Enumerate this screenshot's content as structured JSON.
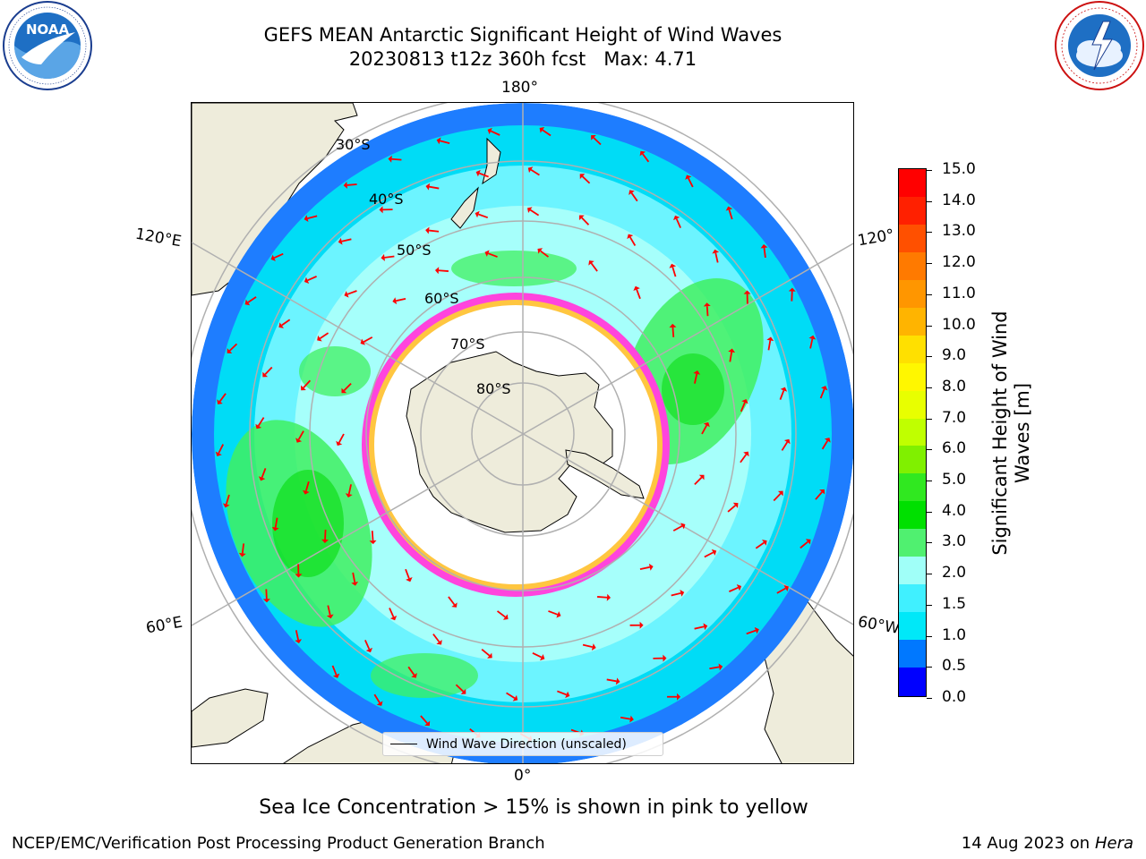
{
  "title": {
    "line1": "GEFS MEAN Antarctic Significant Height of Wind Waves",
    "line2": "20230813 t12z 360h fcst   Max: 4.71"
  },
  "logos": {
    "left": {
      "name": "noaa-logo",
      "text": "NOAA",
      "ring_text": "NATIONAL OCEANIC AND ATMOSPHERIC ADMINISTRATION · U.S. DEPARTMENT OF COMMERCE"
    },
    "right": {
      "name": "nws-logo",
      "ring_text": "NATIONAL WEATHER SERVICE"
    }
  },
  "map": {
    "projection": "south-polar-stereographic",
    "longitude_labels": {
      "top": "180°",
      "bottom": "0°",
      "upper_left": "120°E",
      "lower_left": "60°E",
      "upper_right": "120°",
      "lower_right": "60°W"
    },
    "latitude_labels": [
      "30°S",
      "40°S",
      "50°S",
      "60°S",
      "70°S",
      "80°S"
    ],
    "legend": {
      "label": "Wind Wave Direction (unscaled)"
    },
    "colors": {
      "land": "#eeecdb",
      "outside": "#ffffff",
      "grid": "#b0b0b0",
      "arrow": "#ff0000",
      "sea_ice": "#ff44dd"
    }
  },
  "colorbar": {
    "title_line1": "Significant Height of Wind",
    "title_line2": "Waves [m]",
    "ticks": [
      "15.0",
      "14.0",
      "13.0",
      "12.0",
      "11.0",
      "10.0",
      "9.0",
      "8.0",
      "7.0",
      "6.0",
      "5.0",
      "4.0",
      "3.0",
      "2.0",
      "1.5",
      "1.0",
      "0.5",
      "0.0"
    ],
    "colors_top_to_bottom": [
      "#ff0000",
      "#ff2000",
      "#ff5000",
      "#ff7a00",
      "#ff9600",
      "#ffb400",
      "#ffe000",
      "#fff700",
      "#e8ff00",
      "#c0ff00",
      "#80f000",
      "#30e820",
      "#00e000",
      "#50f070",
      "#a0fff8",
      "#40f0ff",
      "#00e8f8",
      "#0078ff",
      "#0000ff"
    ]
  },
  "notes": {
    "sea_ice": "Sea Ice Concentration > 15% is shown in pink to yellow"
  },
  "footer": {
    "left": "NCEP/EMC/Verification Post Processing Product Generation Branch",
    "right_date": "14 Aug 2023 on",
    "right_machine": "Hera"
  }
}
